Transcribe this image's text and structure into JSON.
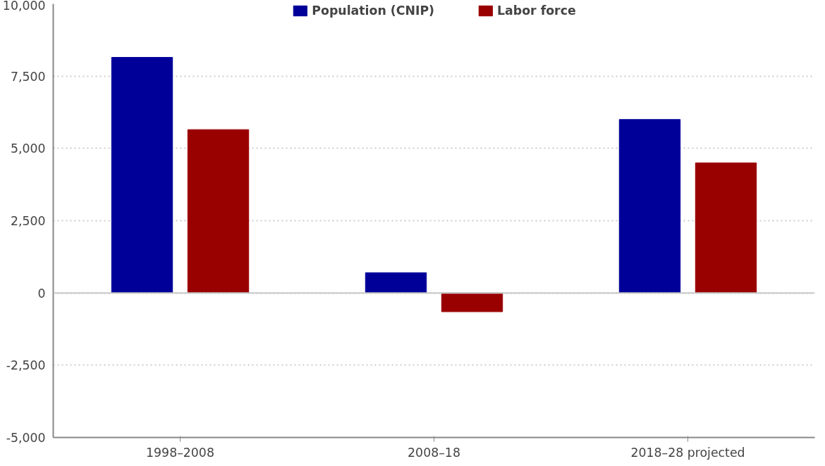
{
  "chart_data": {
    "type": "bar",
    "categories": [
      "1998–2008",
      "2008–18",
      "2018–28 projected"
    ],
    "series": [
      {
        "name": "Population (CNIP)",
        "color": "#000099",
        "values": [
          8150,
          700,
          6000
        ]
      },
      {
        "name": "Labor force",
        "color": "#990000",
        "values": [
          5650,
          -650,
          4500
        ]
      }
    ],
    "ylim": [
      -5000,
      10000
    ],
    "yticks": [
      {
        "value": -5000,
        "label": "-5,000"
      },
      {
        "value": -2500,
        "label": "-2,500"
      },
      0,
      {
        "value": 2500,
        "label": "2,500"
      },
      {
        "value": 5000,
        "label": "5,000"
      },
      {
        "value": 7500,
        "label": "7,500"
      },
      {
        "value": 10000,
        "label": "10,000"
      }
    ],
    "ref_lines": [
      {
        "axis": "y",
        "value": 0,
        "color": "#c8c8c8"
      }
    ],
    "grid": "y",
    "legend": "top"
  }
}
